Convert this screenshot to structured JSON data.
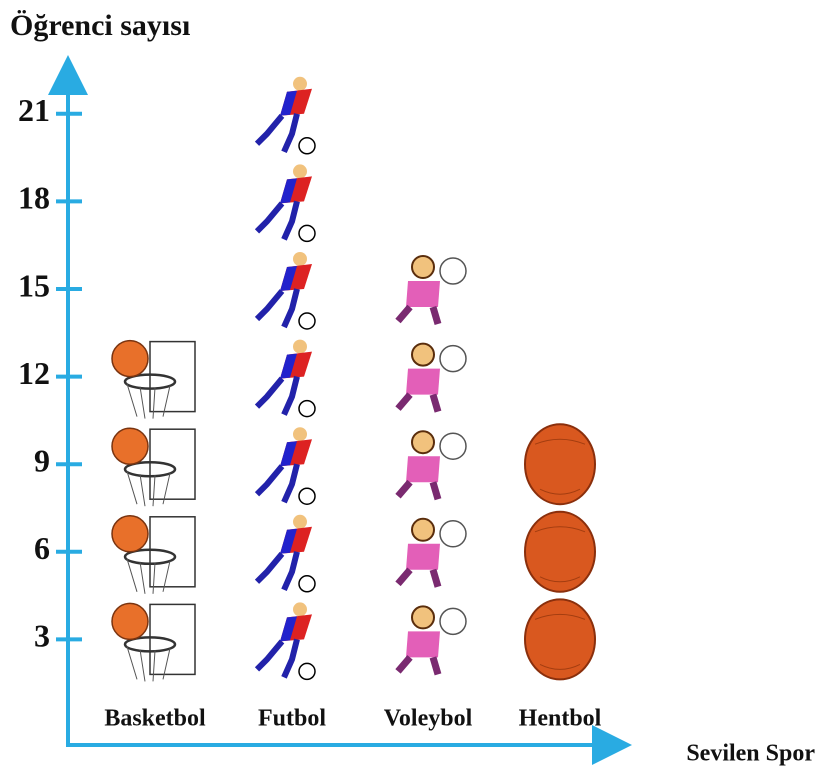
{
  "chart_data": {
    "type": "pictograph",
    "title": "Öğrenci sayısı",
    "x_label": "Sevilen Spor",
    "categories": [
      "Basketbol",
      "Futbol",
      "Voleybol",
      "Hentbol"
    ],
    "values": [
      12,
      21,
      15,
      9
    ],
    "ylim": [
      0,
      22.5
    ],
    "yticks": [
      3,
      6,
      9,
      12,
      15,
      18,
      21
    ],
    "color": "#29abe2"
  }
}
